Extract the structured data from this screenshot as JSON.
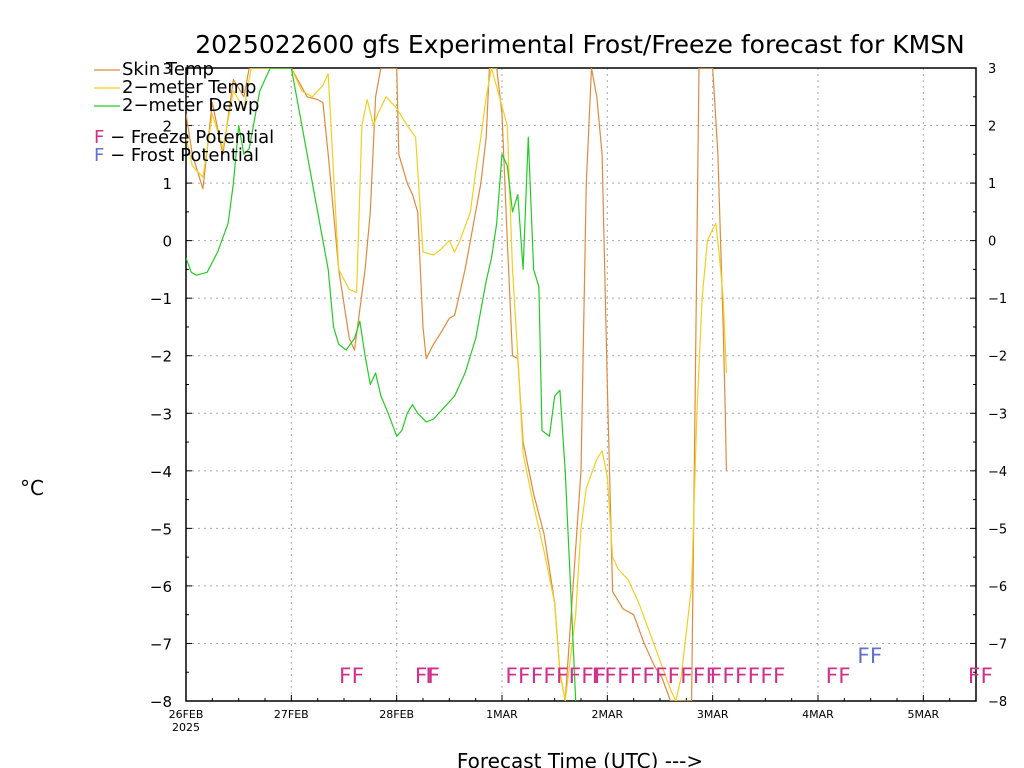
{
  "chart_data": {
    "type": "line",
    "title": "2025022600 gfs Experimental Frost/Freeze forecast for KMSN",
    "xlabel": "Forecast Time (UTC) --->",
    "ylabel": "°C",
    "ylim": [
      -8,
      3
    ],
    "xlim": [
      0,
      7.5
    ],
    "y_ticks": [
      3,
      2,
      1,
      0,
      -1,
      -2,
      -3,
      -4,
      -5,
      -6,
      -7,
      -8
    ],
    "y_tick_labels": [
      "3",
      "2",
      "1",
      "0",
      "−1",
      "−2",
      "−3",
      "−4",
      "−5",
      "−6",
      "−7",
      "−8"
    ],
    "x_ticks": [
      {
        "day": 0,
        "label": "26FEB",
        "sublabel": "2025"
      },
      {
        "day": 1,
        "label": "27FEB"
      },
      {
        "day": 2,
        "label": "28FEB"
      },
      {
        "day": 3,
        "label": "1MAR"
      },
      {
        "day": 4,
        "label": "2MAR"
      },
      {
        "day": 5,
        "label": "3MAR"
      },
      {
        "day": 6,
        "label": "4MAR"
      },
      {
        "day": 7,
        "label": "5MAR"
      }
    ],
    "grid": true,
    "legend_position": "top-left",
    "series": [
      {
        "name": "Skin Temp",
        "color": "#e08a3c",
        "points": [
          [
            0,
            2.2
          ],
          [
            0.06,
            1.5
          ],
          [
            0.16,
            0.9
          ],
          [
            0.25,
            2.4
          ],
          [
            0.35,
            1.5
          ],
          [
            0.45,
            2.8
          ],
          [
            0.55,
            2.5
          ],
          [
            0.6,
            3.0
          ],
          [
            1.0,
            3.0
          ],
          [
            1.15,
            2.5
          ],
          [
            1.25,
            2.45
          ],
          [
            1.3,
            2.4
          ],
          [
            1.35,
            1.5
          ],
          [
            1.45,
            -0.5
          ],
          [
            1.55,
            -1.7
          ],
          [
            1.6,
            -1.9
          ],
          [
            1.7,
            -0.5
          ],
          [
            1.75,
            0.5
          ],
          [
            1.8,
            2.5
          ],
          [
            1.85,
            3.0
          ],
          [
            2.0,
            3.0
          ],
          [
            2.02,
            1.5
          ],
          [
            2.1,
            1.0
          ],
          [
            2.15,
            0.8
          ],
          [
            2.2,
            0.5
          ],
          [
            2.25,
            -1.5
          ],
          [
            2.28,
            -2.05
          ],
          [
            2.35,
            -1.8
          ],
          [
            2.42,
            -1.6
          ],
          [
            2.5,
            -1.35
          ],
          [
            2.55,
            -1.3
          ],
          [
            2.6,
            -0.9
          ],
          [
            2.65,
            -0.5
          ],
          [
            2.7,
            0.0
          ],
          [
            2.8,
            1.0
          ],
          [
            2.85,
            1.8
          ],
          [
            2.88,
            3.0
          ],
          [
            2.95,
            3.0
          ],
          [
            3.0,
            2.2
          ],
          [
            3.05,
            0.0
          ],
          [
            3.1,
            -2.0
          ],
          [
            3.15,
            -2.05
          ],
          [
            3.2,
            -3.5
          ],
          [
            3.3,
            -4.4
          ],
          [
            3.4,
            -5.1
          ],
          [
            3.5,
            -6.3
          ],
          [
            3.55,
            -7.5
          ],
          [
            3.6,
            -8.0
          ],
          [
            3.75,
            -4.0
          ],
          [
            3.8,
            1.0
          ],
          [
            3.85,
            3.0
          ],
          [
            3.9,
            2.5
          ],
          [
            3.95,
            1.5
          ],
          [
            4.0,
            -2.5
          ],
          [
            4.05,
            -6.1
          ],
          [
            4.1,
            -6.25
          ],
          [
            4.15,
            -6.4
          ],
          [
            4.25,
            -6.5
          ],
          [
            4.35,
            -7.0
          ],
          [
            4.45,
            -7.4
          ],
          [
            4.52,
            -7.6
          ],
          [
            4.6,
            -8.0
          ],
          [
            4.8,
            -8.0
          ],
          [
            4.87,
            3.0
          ],
          [
            5.0,
            3.0
          ],
          [
            5.05,
            1.5
          ],
          [
            5.1,
            -1.5
          ],
          [
            5.12,
            -3.0
          ],
          [
            5.13,
            -4.0
          ]
        ]
      },
      {
        "name": "2-meter Temp",
        "color": "#f0d020",
        "points": [
          [
            0,
            1.8
          ],
          [
            0.06,
            1.3
          ],
          [
            0.16,
            1.1
          ],
          [
            0.25,
            2.2
          ],
          [
            0.35,
            1.6
          ],
          [
            0.45,
            2.6
          ],
          [
            0.55,
            2.3
          ],
          [
            0.62,
            3.0
          ],
          [
            1.0,
            3.0
          ],
          [
            1.1,
            2.6
          ],
          [
            1.2,
            2.5
          ],
          [
            1.3,
            2.7
          ],
          [
            1.35,
            2.9
          ],
          [
            1.45,
            -0.5
          ],
          [
            1.55,
            -0.85
          ],
          [
            1.62,
            -0.9
          ],
          [
            1.67,
            2.0
          ],
          [
            1.72,
            2.45
          ],
          [
            1.78,
            2.0
          ],
          [
            1.82,
            2.2
          ],
          [
            1.9,
            2.5
          ],
          [
            2.0,
            2.3
          ],
          [
            2.1,
            2.0
          ],
          [
            2.18,
            1.8
          ],
          [
            2.25,
            -0.2
          ],
          [
            2.35,
            -0.25
          ],
          [
            2.42,
            -0.15
          ],
          [
            2.5,
            0.0
          ],
          [
            2.55,
            -0.2
          ],
          [
            2.6,
            0.0
          ],
          [
            2.7,
            0.5
          ],
          [
            2.75,
            1.2
          ],
          [
            2.8,
            1.8
          ],
          [
            2.85,
            2.5
          ],
          [
            2.9,
            3.0
          ],
          [
            3.05,
            2.0
          ],
          [
            3.1,
            -0.5
          ],
          [
            3.15,
            -2.0
          ],
          [
            3.2,
            -3.7
          ],
          [
            3.3,
            -4.6
          ],
          [
            3.4,
            -5.4
          ],
          [
            3.5,
            -6.3
          ],
          [
            3.55,
            -7.5
          ],
          [
            3.6,
            -8.0
          ],
          [
            3.7,
            -6.5
          ],
          [
            3.75,
            -5.0
          ],
          [
            3.8,
            -4.3
          ],
          [
            3.9,
            -3.8
          ],
          [
            3.95,
            -3.65
          ],
          [
            4.0,
            -4.1
          ],
          [
            4.05,
            -5.5
          ],
          [
            4.1,
            -5.7
          ],
          [
            4.2,
            -5.9
          ],
          [
            4.3,
            -6.3
          ],
          [
            4.4,
            -6.8
          ],
          [
            4.5,
            -7.3
          ],
          [
            4.6,
            -7.8
          ],
          [
            4.65,
            -8.0
          ],
          [
            4.7,
            -7.6
          ],
          [
            4.8,
            -6.0
          ],
          [
            4.85,
            -3.0
          ],
          [
            4.9,
            -1.0
          ],
          [
            4.95,
            0.0
          ],
          [
            5.0,
            0.2
          ],
          [
            5.03,
            0.3
          ],
          [
            5.06,
            -0.2
          ],
          [
            5.1,
            -1.0
          ],
          [
            5.13,
            -2.3
          ]
        ]
      },
      {
        "name": "2-meter Dewp",
        "color": "#22cc22",
        "points": [
          [
            0,
            -0.3
          ],
          [
            0.05,
            -0.55
          ],
          [
            0.1,
            -0.6
          ],
          [
            0.2,
            -0.55
          ],
          [
            0.3,
            -0.2
          ],
          [
            0.4,
            0.3
          ],
          [
            0.45,
            1.0
          ],
          [
            0.5,
            2.0
          ],
          [
            0.55,
            1.5
          ],
          [
            0.6,
            1.6
          ],
          [
            0.7,
            2.6
          ],
          [
            0.8,
            3.0
          ],
          [
            1.0,
            3.0
          ],
          [
            1.1,
            2.0
          ],
          [
            1.2,
            1.0
          ],
          [
            1.3,
            0.0
          ],
          [
            1.35,
            -0.5
          ],
          [
            1.4,
            -1.5
          ],
          [
            1.45,
            -1.8
          ],
          [
            1.52,
            -1.9
          ],
          [
            1.6,
            -1.7
          ],
          [
            1.65,
            -1.4
          ],
          [
            1.7,
            -2.0
          ],
          [
            1.75,
            -2.5
          ],
          [
            1.8,
            -2.3
          ],
          [
            1.85,
            -2.7
          ],
          [
            1.92,
            -3.0
          ],
          [
            2.0,
            -3.4
          ],
          [
            2.05,
            -3.3
          ],
          [
            2.1,
            -3.0
          ],
          [
            2.15,
            -2.85
          ],
          [
            2.2,
            -3.0
          ],
          [
            2.28,
            -3.15
          ],
          [
            2.35,
            -3.1
          ],
          [
            2.45,
            -2.9
          ],
          [
            2.55,
            -2.7
          ],
          [
            2.65,
            -2.3
          ],
          [
            2.75,
            -1.7
          ],
          [
            2.85,
            -0.7
          ],
          [
            2.9,
            -0.3
          ],
          [
            2.95,
            0.3
          ],
          [
            3.0,
            1.5
          ],
          [
            3.05,
            1.3
          ],
          [
            3.1,
            0.5
          ],
          [
            3.15,
            0.8
          ],
          [
            3.2,
            -0.5
          ],
          [
            3.25,
            1.8
          ],
          [
            3.3,
            -0.5
          ],
          [
            3.35,
            -0.8
          ],
          [
            3.38,
            -3.3
          ],
          [
            3.45,
            -3.4
          ],
          [
            3.5,
            -2.7
          ],
          [
            3.55,
            -2.6
          ],
          [
            3.6,
            -4.0
          ],
          [
            3.65,
            -6.0
          ],
          [
            3.7,
            -8.0
          ]
        ]
      }
    ],
    "freeze_markers": [
      {
        "day": 1.45,
        "text": "FF"
      },
      {
        "day": 2.17,
        "text": "FF"
      },
      {
        "day": 2.27,
        "text": "F"
      },
      {
        "day": 3.03,
        "text": "FFFFFFFF"
      },
      {
        "day": 3.85,
        "text": "FFFFFFFFFF"
      },
      {
        "day": 4.97,
        "text": "FFFFFF"
      },
      {
        "day": 6.07,
        "text": "FF"
      },
      {
        "day": 7.42,
        "text": "FF"
      }
    ],
    "frost_markers": [
      {
        "day": 6.37,
        "text": "FF"
      }
    ],
    "legend_entries": [
      {
        "label": "Skin Temp",
        "color": "#e08a3c"
      },
      {
        "label": "2−meter Temp",
        "color": "#f0d020"
      },
      {
        "label": "2−meter Dewp",
        "color": "#22cc22"
      }
    ],
    "legend_notes": [
      {
        "glyph": "F",
        "text": " − Freeze Potential",
        "color": "#d0308a"
      },
      {
        "glyph": "F",
        "text": " − Frost Potential",
        "color": "#6070d0"
      }
    ],
    "freeze_color": "#d0308a",
    "frost_color": "#6070d0",
    "freeze_level": -7.55,
    "frost_level": -7.2
  }
}
